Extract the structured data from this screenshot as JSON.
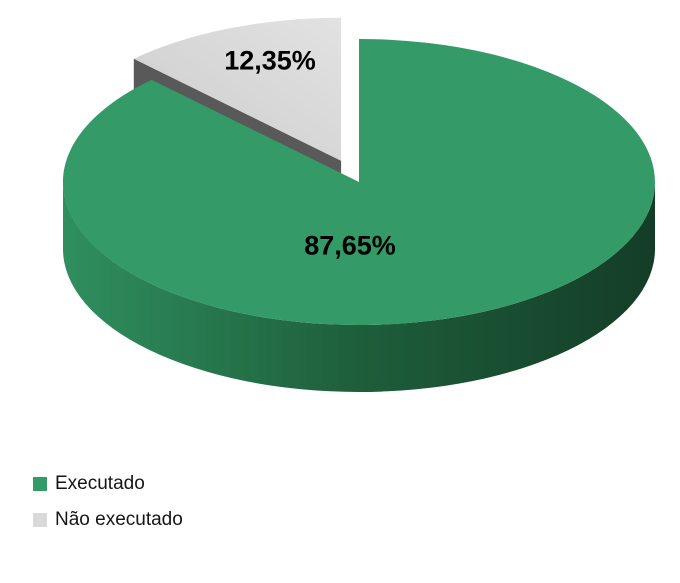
{
  "chart_data": {
    "type": "pie",
    "style": "3d-exploded",
    "title": "",
    "start_angle": "12-o-clock-clockwise",
    "categories": [
      "Executado",
      "Não executado"
    ],
    "values": [
      87.65,
      12.35
    ],
    "legend_position": "bottom-left",
    "label_color": "#000000",
    "slices": [
      {
        "name": "Executado",
        "value": 87.65,
        "label": "87,65%",
        "top_color": "#349a68",
        "side_gradient": [
          "#2f8f5e",
          "#1e5e3b",
          "#143d27"
        ],
        "exploded": false
      },
      {
        "name": "Não executado",
        "value": 12.35,
        "label": "12,35%",
        "top_color": "#d9d9d9",
        "top_gradient": [
          "#e2e2e2",
          "#cccccc"
        ],
        "side_color": "#595959",
        "exploded": true
      }
    ]
  },
  "legend": {
    "items": [
      {
        "label": "Executado",
        "color": "#349a68"
      },
      {
        "label": "Não executado",
        "color": "#d9d9d9"
      }
    ]
  }
}
